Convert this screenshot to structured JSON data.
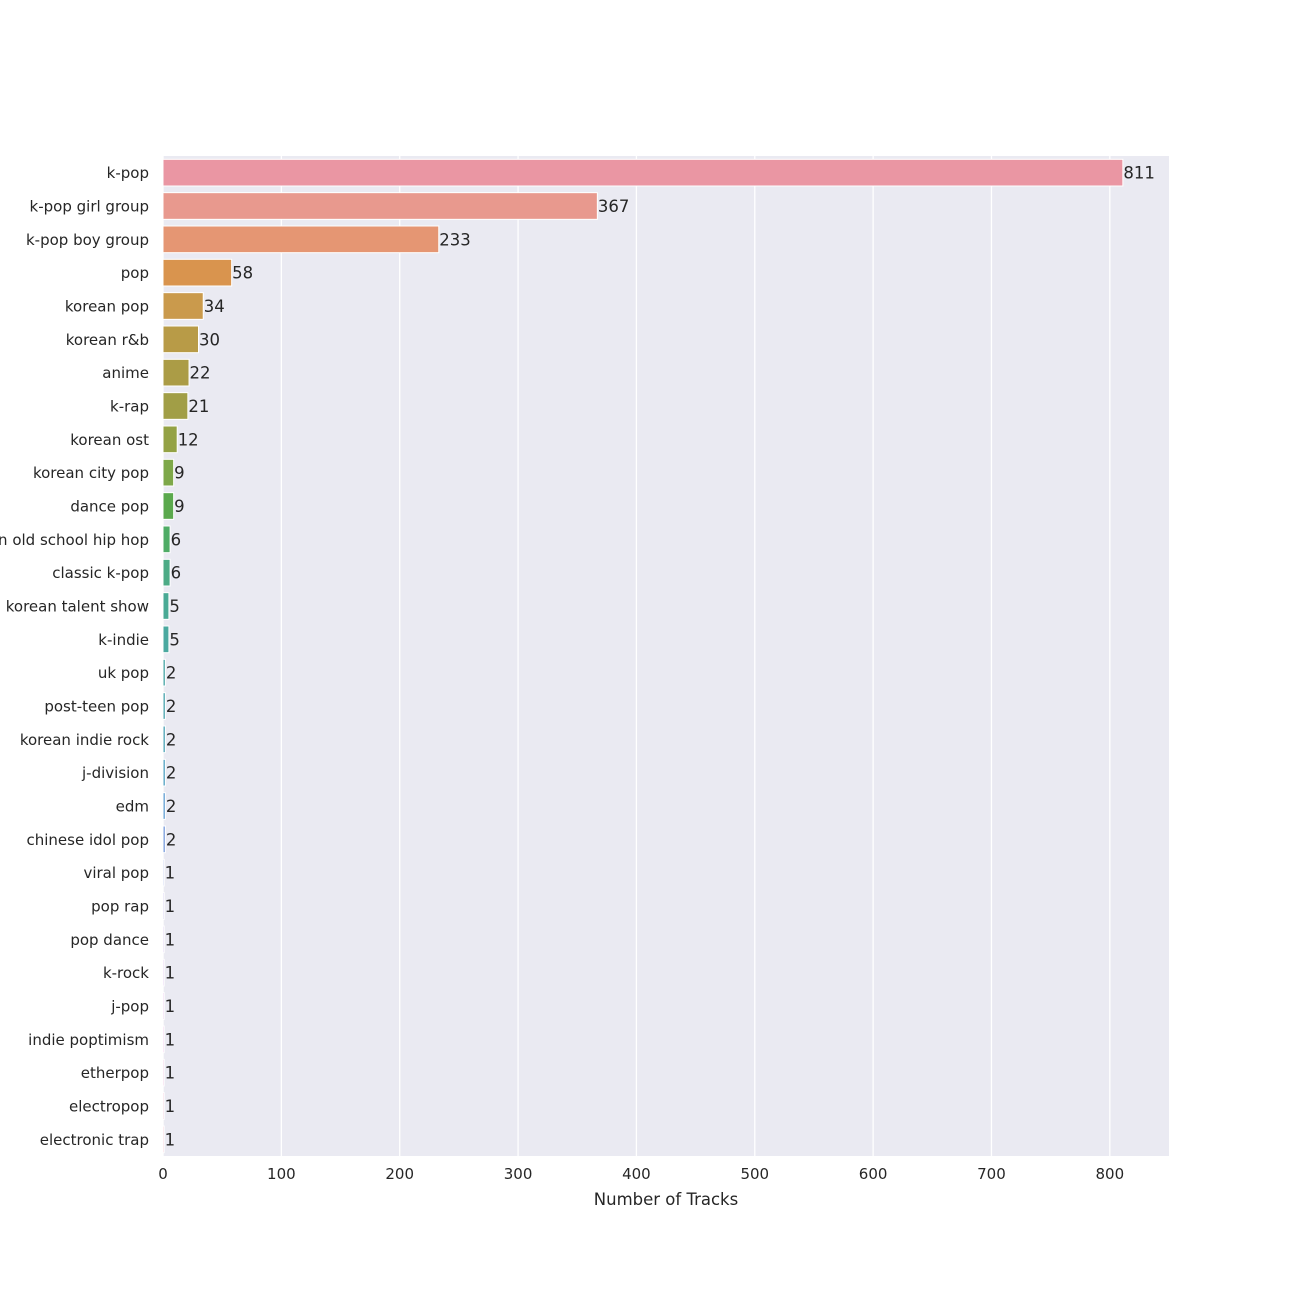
{
  "chart_data": {
    "type": "bar",
    "orientation": "horizontal",
    "xlabel": "Number of Tracks",
    "ylabel": "",
    "xlim": [
      0,
      850
    ],
    "xticks": [
      0,
      100,
      200,
      300,
      400,
      500,
      600,
      700,
      800
    ],
    "grid": true,
    "legend": "none",
    "background": "#eaeaf2",
    "categories": [
      "k-pop",
      "k-pop girl group",
      "k-pop boy group",
      "pop",
      "korean pop",
      "korean r&b",
      "anime",
      "k-rap",
      "korean ost",
      "korean city pop",
      "dance pop",
      "korean old school hip hop",
      "classic k-pop",
      "korean talent show",
      "k-indie",
      "uk pop",
      "post-teen pop",
      "korean indie rock",
      "j-division",
      "edm",
      "chinese idol pop",
      "viral pop",
      "pop rap",
      "pop dance",
      "k-rock",
      "j-pop",
      "indie poptimism",
      "etherpop",
      "electropop",
      "electronic trap"
    ],
    "values": [
      811,
      367,
      233,
      58,
      34,
      30,
      22,
      21,
      12,
      9,
      9,
      6,
      6,
      5,
      5,
      2,
      2,
      2,
      2,
      2,
      2,
      1,
      1,
      1,
      1,
      1,
      1,
      1,
      1,
      1
    ],
    "colors": [
      "#ea96a3",
      "#e8998e",
      "#e59673",
      "#d9944e",
      "#ca9a4c",
      "#b89b47",
      "#ab9c46",
      "#a19e46",
      "#94a245",
      "#7ea849",
      "#5ba94d",
      "#4fac66",
      "#4dab86",
      "#4aaa95",
      "#4ba9a0",
      "#4ea8a8",
      "#50a7b0",
      "#53a6b9",
      "#58a5c5",
      "#68a3d4",
      "#7ea0de",
      "#939ee2",
      "#a79be5",
      "#b998e5",
      "#c894e3",
      "#d592de",
      "#e18fd7",
      "#e792c9",
      "#e996bb",
      "#eb98ad"
    ]
  }
}
